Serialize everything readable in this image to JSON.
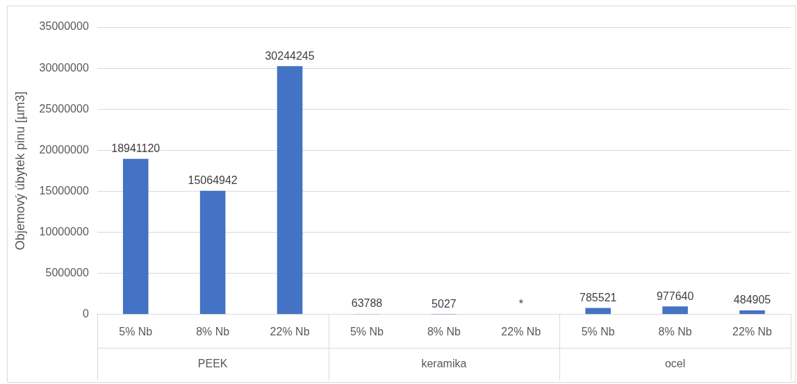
{
  "chart_data": {
    "type": "bar",
    "ylabel": "Objemový úbytek pinu [µm3]",
    "categories": [
      "5% Nb",
      "8% Nb",
      "22% Nb",
      "5% Nb",
      "8% Nb",
      "22% Nb",
      "5% Nb",
      "8% Nb",
      "22% Nb"
    ],
    "values": [
      18941120,
      15064942,
      30244245,
      63788,
      5027,
      null,
      785521,
      977640,
      484905
    ],
    "value_labels": [
      "18941120",
      "15064942",
      "30244245",
      "63788",
      "5027",
      "*",
      "785521",
      "977640",
      "484905"
    ],
    "color": "#4472c4",
    "ylim": [
      0,
      35000000
    ],
    "yticks": [
      0,
      5000000,
      10000000,
      15000000,
      20000000,
      25000000,
      30000000,
      35000000
    ],
    "grid": "y",
    "legend": false,
    "annotations": [
      "PEEK",
      "keramika",
      "ocel"
    ]
  }
}
